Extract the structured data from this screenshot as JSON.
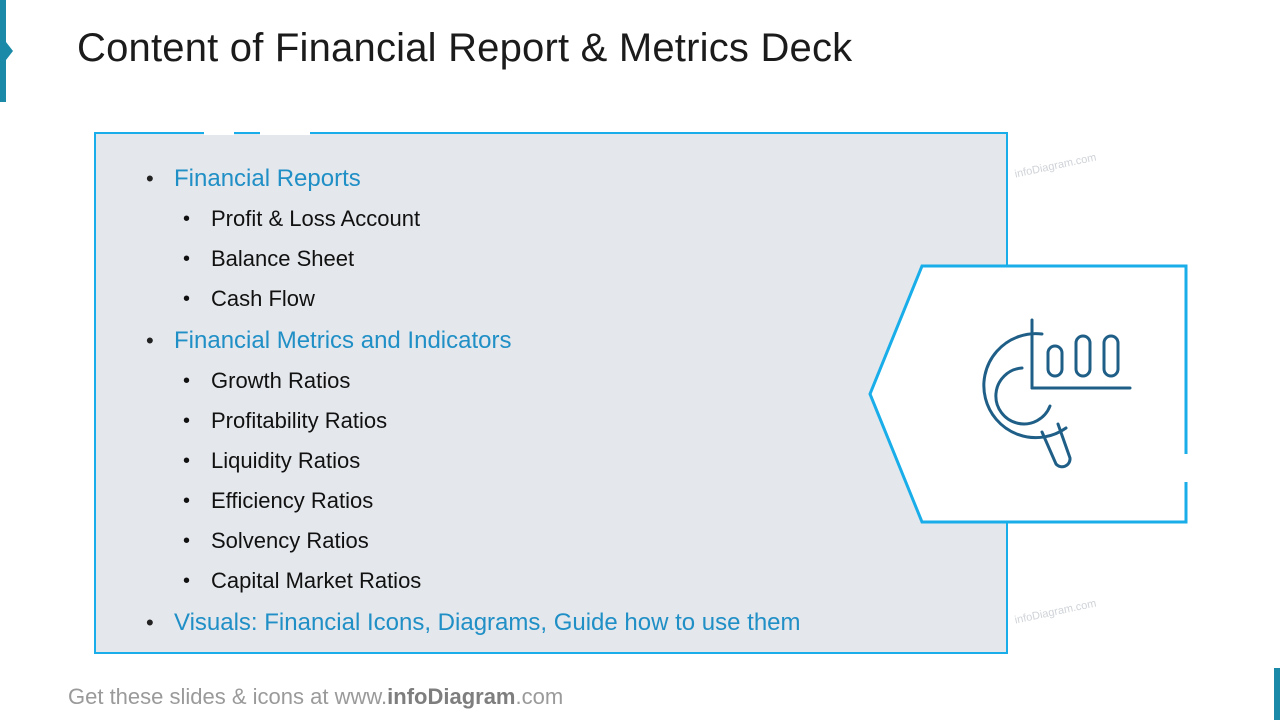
{
  "slide": {
    "title": "Content of Financial Report & Metrics Deck",
    "sections": [
      {
        "label": "Financial Reports",
        "items": [
          "Profit & Loss Account",
          "Balance Sheet",
          "Cash Flow"
        ]
      },
      {
        "label": "Financial Metrics and Indicators",
        "items": [
          "Growth Ratios",
          "Profitability Ratios",
          "Liquidity Ratios",
          "Efficiency Ratios",
          "Solvency Ratios",
          "Capital Market Ratios"
        ]
      },
      {
        "label": "Visuals: Financial Icons, Diagrams, Guide how to use them",
        "items": []
      }
    ],
    "watermark": "infoDiagram.com",
    "icon": "magnifier-chart-icon",
    "footer": {
      "prefix": "Get these slides & icons at www.",
      "brand": "infoDiagram",
      "suffix": ".com"
    }
  },
  "colors": {
    "accent": "#19aee9",
    "heading": "#1f8fc6",
    "panel": "#e4e7ec",
    "icon": "#1f5f87",
    "brand_bar": "#1a8aa8"
  }
}
